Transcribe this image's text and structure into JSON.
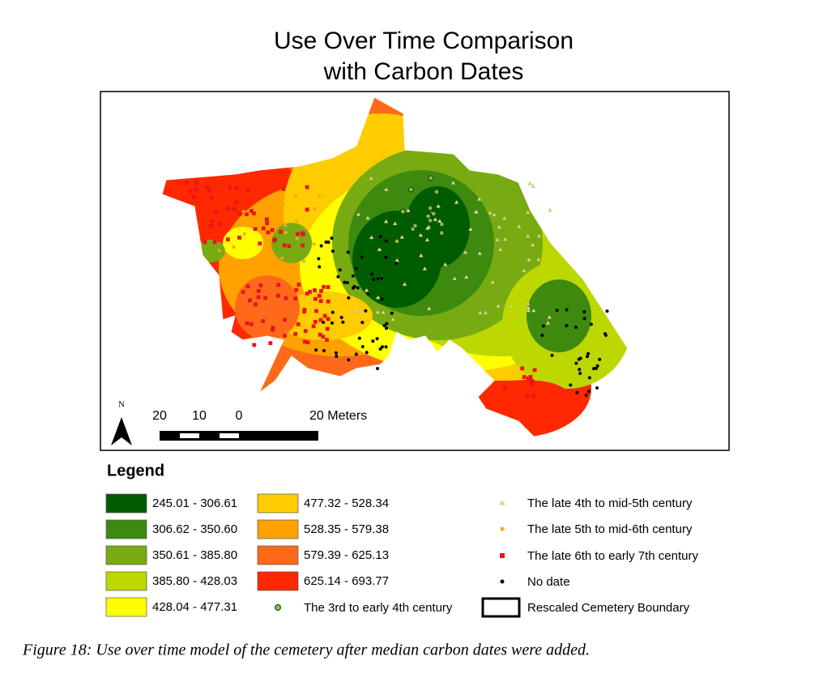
{
  "title": [
    "Use Over Time Comparison",
    "with Carbon Dates"
  ],
  "north": "N",
  "scale_bar": [
    "20",
    "10",
    "0",
    "20 Meters"
  ],
  "legend": {
    "title": "Legend",
    "ranges": [
      {
        "label": "245.01 - 306.61",
        "color": "#005c00"
      },
      {
        "label": "306.62 - 350.60",
        "color": "#3d8a0f"
      },
      {
        "label": "350.61 - 385.80",
        "color": "#78ab12"
      },
      {
        "label": "385.80 - 428.03",
        "color": "#bcd800"
      },
      {
        "label": "428.04 - 477.31",
        "color": "#ffff00"
      },
      {
        "label": "477.32 - 528.34",
        "color": "#ffcc00"
      },
      {
        "label": "528.35 - 579.38",
        "color": "#ffa200"
      },
      {
        "label": "579.39 - 625.13",
        "color": "#ff6a1a"
      },
      {
        "label": "625.14 - 693.77",
        "color": "#ff2800"
      }
    ],
    "symbols": [
      {
        "label": "The 3rd to early 4th century",
        "color": "#7ac143"
      },
      {
        "label": "The late 4th to mid-5th century",
        "color": "#f0e060"
      },
      {
        "label": "The late 5th to mid-6th century",
        "color": "#f5a623"
      },
      {
        "label": "The late 6th to early 7th century",
        "color": "#e8141e"
      },
      {
        "label": "No date",
        "color": "#000000"
      },
      {
        "label": "Rescaled Cemetery Boundary",
        "color": "#000000"
      }
    ]
  },
  "caption": "Figure 18: Use over time model of the cemetery after median carbon dates were added."
}
